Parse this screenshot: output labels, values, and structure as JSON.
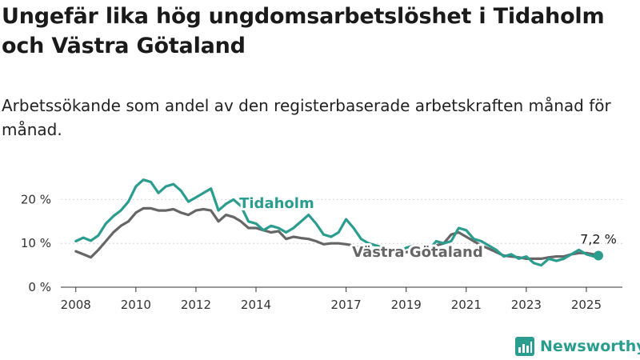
{
  "header": {
    "title": "Ungefär lika hög ungdomsarbetslöshet i Tidaholm och Västra Götaland",
    "subtitle": "Arbetssökande som andel av den registerbaserade arbetskraften månad för månad."
  },
  "brand": {
    "name": "Newsworthy",
    "icon": "newsworthy-logo-icon",
    "color": "#2a9d8f"
  },
  "chart_data": {
    "type": "line",
    "title": "Ungefär lika hög ungdomsarbetslöshet i Tidaholm och Västra Götaland",
    "subtitle": "Arbetssökande som andel av den registerbaserade arbetskraften månad för månad.",
    "xlabel": "",
    "ylabel": "",
    "xlim": [
      2007.5,
      2026.2
    ],
    "ylim": [
      0,
      25
    ],
    "y_ticks": [
      0,
      10,
      20
    ],
    "y_tick_labels": [
      "0 %",
      "10 %",
      "20 %"
    ],
    "x_ticks": [
      2008,
      2010,
      2012,
      2014,
      2017,
      2019,
      2021,
      2023,
      2025
    ],
    "x_tick_labels": [
      "2008",
      "2010",
      "2012",
      "2014",
      "2017",
      "2019",
      "2021",
      "2023",
      "2025"
    ],
    "grid": true,
    "legend": "inline labels",
    "end_label": "7,2 %",
    "series": [
      {
        "name": "Tidaholm",
        "color": "#2a9d8f",
        "points": [
          [
            2008.0,
            10.5
          ],
          [
            2008.25,
            11.3
          ],
          [
            2008.5,
            10.6
          ],
          [
            2008.75,
            11.8
          ],
          [
            2009.0,
            14.5
          ],
          [
            2009.25,
            16.2
          ],
          [
            2009.5,
            17.5
          ],
          [
            2009.75,
            19.5
          ],
          [
            2010.0,
            23.0
          ],
          [
            2010.25,
            24.5
          ],
          [
            2010.5,
            24.0
          ],
          [
            2010.75,
            21.5
          ],
          [
            2011.0,
            23.0
          ],
          [
            2011.25,
            23.5
          ],
          [
            2011.5,
            22.0
          ],
          [
            2011.75,
            19.5
          ],
          [
            2012.0,
            20.5
          ],
          [
            2012.25,
            21.5
          ],
          [
            2012.5,
            22.5
          ],
          [
            2012.75,
            17.5
          ],
          [
            2013.0,
            19.0
          ],
          [
            2013.25,
            20.0
          ],
          [
            2013.5,
            18.5
          ],
          [
            2013.75,
            15.0
          ],
          [
            2014.0,
            14.5
          ],
          [
            2014.25,
            13.0
          ],
          [
            2014.5,
            14.0
          ],
          [
            2014.75,
            13.5
          ],
          [
            2015.0,
            12.5
          ],
          [
            2015.25,
            13.5
          ],
          [
            2015.5,
            15.0
          ],
          [
            2015.75,
            16.5
          ],
          [
            2016.0,
            14.5
          ],
          [
            2016.25,
            12.0
          ],
          [
            2016.5,
            11.5
          ],
          [
            2016.75,
            12.5
          ],
          [
            2017.0,
            15.5
          ],
          [
            2017.25,
            13.5
          ],
          [
            2017.5,
            11.0
          ],
          [
            2017.75,
            10.0
          ],
          [
            2018.0,
            9.5
          ],
          [
            2018.25,
            9.0
          ],
          [
            2018.5,
            8.5
          ],
          [
            2018.75,
            8.0
          ],
          [
            2019.0,
            9.0
          ],
          [
            2019.25,
            9.5
          ],
          [
            2019.5,
            9.0
          ],
          [
            2019.75,
            8.5
          ],
          [
            2020.0,
            10.5
          ],
          [
            2020.25,
            10.0
          ],
          [
            2020.5,
            10.5
          ],
          [
            2020.75,
            13.5
          ],
          [
            2021.0,
            13.0
          ],
          [
            2021.25,
            11.0
          ],
          [
            2021.5,
            10.5
          ],
          [
            2021.75,
            9.5
          ],
          [
            2022.0,
            8.5
          ],
          [
            2022.25,
            7.0
          ],
          [
            2022.5,
            7.5
          ],
          [
            2022.75,
            6.5
          ],
          [
            2023.0,
            7.0
          ],
          [
            2023.25,
            5.5
          ],
          [
            2023.5,
            5.0
          ],
          [
            2023.75,
            6.5
          ],
          [
            2024.0,
            6.0
          ],
          [
            2024.25,
            6.5
          ],
          [
            2024.5,
            7.5
          ],
          [
            2024.75,
            8.5
          ],
          [
            2025.0,
            7.5
          ],
          [
            2025.25,
            7.0
          ],
          [
            2025.4,
            7.2
          ]
        ]
      },
      {
        "name": "Västra Götaland",
        "color": "#666666",
        "points": [
          [
            2008.0,
            8.2
          ],
          [
            2008.25,
            7.5
          ],
          [
            2008.5,
            6.8
          ],
          [
            2008.75,
            8.5
          ],
          [
            2009.0,
            10.5
          ],
          [
            2009.25,
            12.5
          ],
          [
            2009.5,
            14.0
          ],
          [
            2009.75,
            15.0
          ],
          [
            2010.0,
            17.0
          ],
          [
            2010.25,
            18.0
          ],
          [
            2010.5,
            18.0
          ],
          [
            2010.75,
            17.5
          ],
          [
            2011.0,
            17.5
          ],
          [
            2011.25,
            17.8
          ],
          [
            2011.5,
            17.0
          ],
          [
            2011.75,
            16.5
          ],
          [
            2012.0,
            17.5
          ],
          [
            2012.25,
            17.8
          ],
          [
            2012.5,
            17.5
          ],
          [
            2012.75,
            15.0
          ],
          [
            2013.0,
            16.5
          ],
          [
            2013.25,
            16.0
          ],
          [
            2013.5,
            15.0
          ],
          [
            2013.75,
            13.5
          ],
          [
            2014.0,
            13.5
          ],
          [
            2014.25,
            13.0
          ],
          [
            2014.5,
            12.5
          ],
          [
            2014.75,
            12.8
          ],
          [
            2015.0,
            11.0
          ],
          [
            2015.25,
            11.5
          ],
          [
            2015.5,
            11.2
          ],
          [
            2015.75,
            11.0
          ],
          [
            2016.0,
            10.5
          ],
          [
            2016.25,
            9.8
          ],
          [
            2016.5,
            10.0
          ],
          [
            2016.75,
            10.0
          ],
          [
            2017.0,
            9.8
          ],
          [
            2017.25,
            9.5
          ],
          [
            2017.5,
            8.8
          ],
          [
            2017.75,
            8.5
          ],
          [
            2018.0,
            8.2
          ],
          [
            2018.25,
            8.0
          ],
          [
            2018.5,
            8.0
          ],
          [
            2018.75,
            7.8
          ],
          [
            2019.0,
            8.0
          ],
          [
            2019.25,
            8.2
          ],
          [
            2019.5,
            8.3
          ],
          [
            2019.75,
            8.5
          ],
          [
            2020.0,
            9.5
          ],
          [
            2020.25,
            10.0
          ],
          [
            2020.5,
            12.0
          ],
          [
            2020.75,
            12.5
          ],
          [
            2021.0,
            11.5
          ],
          [
            2021.25,
            10.5
          ],
          [
            2021.5,
            9.5
          ],
          [
            2021.75,
            8.8
          ],
          [
            2022.0,
            8.0
          ],
          [
            2022.25,
            7.2
          ],
          [
            2022.5,
            7.0
          ],
          [
            2022.75,
            6.8
          ],
          [
            2023.0,
            6.5
          ],
          [
            2023.25,
            6.5
          ],
          [
            2023.5,
            6.5
          ],
          [
            2023.75,
            6.8
          ],
          [
            2024.0,
            7.0
          ],
          [
            2024.25,
            7.0
          ],
          [
            2024.5,
            7.5
          ],
          [
            2024.75,
            7.8
          ],
          [
            2025.0,
            7.8
          ],
          [
            2025.25,
            7.5
          ],
          [
            2025.4,
            7.3
          ]
        ]
      }
    ]
  }
}
